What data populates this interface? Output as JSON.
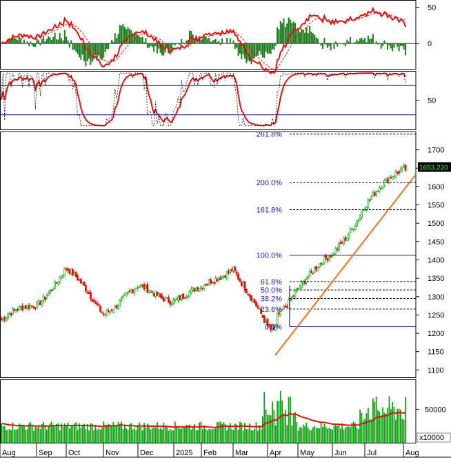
{
  "chart_data": {
    "type": "candlestick-stock-chart",
    "x_axis": {
      "tick_labels": [
        "Aug",
        "Sep",
        "Oct",
        "Nov",
        "Dec",
        "2025",
        "Feb",
        "Mar",
        "Apr",
        "May",
        "Jun",
        "Jul",
        "Aug"
      ]
    },
    "macd_panel": {
      "y_ticks": [
        50,
        0
      ],
      "ylim": [
        -35,
        60
      ]
    },
    "rsi_panel": {
      "y_ticks": [
        50
      ],
      "overbought": 70,
      "oversold": 30,
      "ylim": [
        10,
        90
      ]
    },
    "price_panel": {
      "y_ticks": [
        1700,
        1650,
        1600,
        1550,
        1500,
        1450,
        1400,
        1350,
        1300,
        1250,
        1200,
        1150,
        1100
      ],
      "ylim": [
        1080,
        1750
      ],
      "last_price_label": "1653.220",
      "last_price": 1653.22,
      "fibonacci": [
        {
          "label": "261.8%",
          "value": 1743
        },
        {
          "label": "200.0%",
          "value": 1611
        },
        {
          "label": "161.8%",
          "value": 1537
        },
        {
          "label": "100.0%",
          "value": 1413
        },
        {
          "label": "61.8%",
          "value": 1341
        },
        {
          "label": "50.0%",
          "value": 1318
        },
        {
          "label": "38.2%",
          "value": 1295
        },
        {
          "label": "23.6%",
          "value": 1266
        },
        {
          "label": "0.0%",
          "value": 1218
        }
      ],
      "trendline": {
        "from": {
          "month": "Apr",
          "value": 1140
        },
        "to": {
          "month": "Aug",
          "value": 1633
        }
      },
      "series_approx": [
        {
          "month": "Aug",
          "close": 1235
        },
        {
          "month": "Sep",
          "close": 1280
        },
        {
          "month": "Oct",
          "close": 1375
        },
        {
          "month": "Nov",
          "close": 1260
        },
        {
          "month": "Dec",
          "close": 1320
        },
        {
          "month": "2025",
          "close": 1295
        },
        {
          "month": "Feb",
          "close": 1318
        },
        {
          "month": "Mar",
          "close": 1385
        },
        {
          "month": "Apr",
          "close": 1210
        },
        {
          "month": "May",
          "close": 1330
        },
        {
          "month": "Jun",
          "close": 1410
        },
        {
          "month": "Jul",
          "close": 1550
        },
        {
          "month": "Aug",
          "close": 1653
        }
      ]
    },
    "volume_panel": {
      "y_ticks": [
        50000
      ],
      "unit_label": "x10000",
      "ylim": [
        0,
        95000
      ]
    },
    "colors": {
      "up": "#20b020",
      "down": "#e01010",
      "ma": "#e01010",
      "fib_line": "#000000",
      "trend": "#f07020",
      "band": "#1010a0",
      "volume": "#10a010"
    }
  }
}
